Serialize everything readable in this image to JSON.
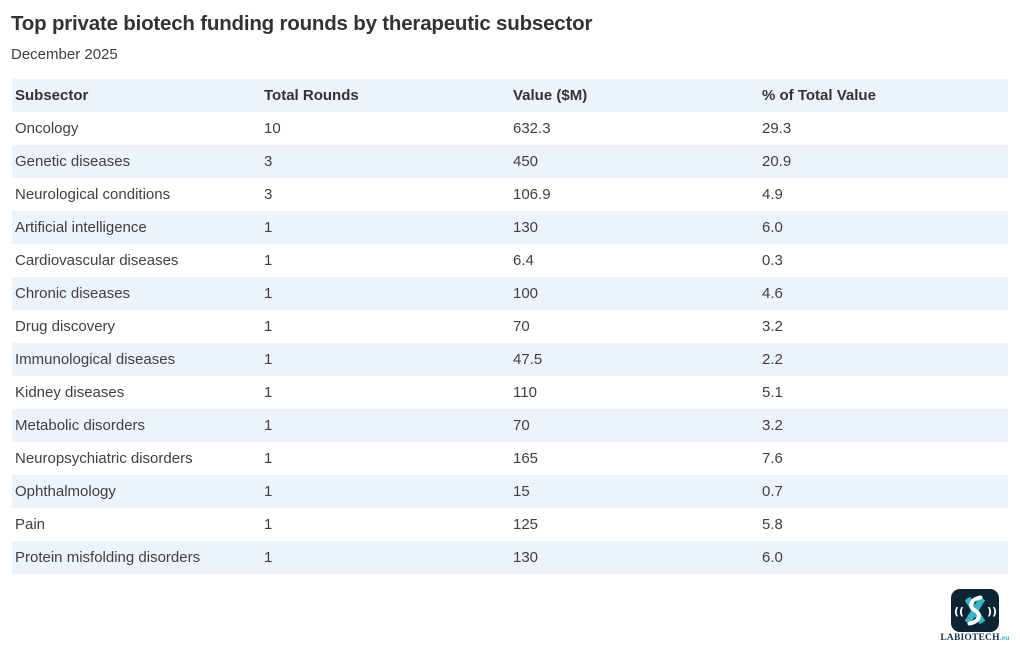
{
  "header": {
    "title": "Top private biotech funding rounds by therapeutic subsector",
    "subtitle": "December 2025"
  },
  "table": {
    "columns": [
      "Subsector",
      "Total Rounds",
      "Value ($M)",
      "% of Total Value"
    ],
    "rows": [
      [
        "Oncology",
        "10",
        "632.3",
        "29.3"
      ],
      [
        "Genetic diseases",
        "3",
        "450",
        "20.9"
      ],
      [
        "Neurological conditions",
        "3",
        "106.9",
        "4.9"
      ],
      [
        "Artificial intelligence",
        "1",
        "130",
        "6.0"
      ],
      [
        "Cardiovascular diseases",
        "1",
        "6.4",
        "0.3"
      ],
      [
        "Chronic diseases",
        "1",
        "100",
        "4.6"
      ],
      [
        "Drug discovery",
        "1",
        "70",
        "3.2"
      ],
      [
        "Immunological diseases",
        "1",
        "47.5",
        "2.2"
      ],
      [
        "Kidney diseases",
        "1",
        "110",
        "5.1"
      ],
      [
        "Metabolic disorders",
        "1",
        "70",
        "3.2"
      ],
      [
        "Neuropsychiatric disorders",
        "1",
        "165",
        "7.6"
      ],
      [
        "Ophthalmology",
        "1",
        "15",
        "0.7"
      ],
      [
        "Pain",
        "1",
        "125",
        "5.8"
      ],
      [
        "Protein misfolding disorders",
        "1",
        "130",
        "6.0"
      ]
    ]
  },
  "chart_data": {
    "type": "table",
    "title": "Top private biotech funding rounds by therapeutic subsector",
    "subtitle": "December 2025",
    "columns": [
      "Subsector",
      "Total Rounds",
      "Value ($M)",
      "% of Total Value"
    ],
    "rows": [
      {
        "subsector": "Oncology",
        "total_rounds": 10,
        "value_musd": 632.3,
        "pct_of_total_value": 29.3
      },
      {
        "subsector": "Genetic diseases",
        "total_rounds": 3,
        "value_musd": 450,
        "pct_of_total_value": 20.9
      },
      {
        "subsector": "Neurological conditions",
        "total_rounds": 3,
        "value_musd": 106.9,
        "pct_of_total_value": 4.9
      },
      {
        "subsector": "Artificial intelligence",
        "total_rounds": 1,
        "value_musd": 130,
        "pct_of_total_value": 6.0
      },
      {
        "subsector": "Cardiovascular diseases",
        "total_rounds": 1,
        "value_musd": 6.4,
        "pct_of_total_value": 0.3
      },
      {
        "subsector": "Chronic diseases",
        "total_rounds": 1,
        "value_musd": 100,
        "pct_of_total_value": 4.6
      },
      {
        "subsector": "Drug discovery",
        "total_rounds": 1,
        "value_musd": 70,
        "pct_of_total_value": 3.2
      },
      {
        "subsector": "Immunological diseases",
        "total_rounds": 1,
        "value_musd": 47.5,
        "pct_of_total_value": 2.2
      },
      {
        "subsector": "Kidney diseases",
        "total_rounds": 1,
        "value_musd": 110,
        "pct_of_total_value": 5.1
      },
      {
        "subsector": "Metabolic disorders",
        "total_rounds": 1,
        "value_musd": 70,
        "pct_of_total_value": 3.2
      },
      {
        "subsector": "Neuropsychiatric disorders",
        "total_rounds": 1,
        "value_musd": 165,
        "pct_of_total_value": 7.6
      },
      {
        "subsector": "Ophthalmology",
        "total_rounds": 1,
        "value_musd": 15,
        "pct_of_total_value": 0.7
      },
      {
        "subsector": "Pain",
        "total_rounds": 1,
        "value_musd": 125,
        "pct_of_total_value": 5.8
      },
      {
        "subsector": "Protein misfolding disorders",
        "total_rounds": 1,
        "value_musd": 130,
        "pct_of_total_value": 6.0
      }
    ],
    "layout_hints": {
      "striped_rows": true,
      "stripe_color": "#edf3fa",
      "header_background": "#edf3fa",
      "grid": false
    }
  },
  "logo": {
    "wordmark": "LABIOTECH",
    "tld": ".eu",
    "colors": {
      "navy": "#0c2433",
      "teal": "#35b6c4",
      "wordmark_navy": "#16364d",
      "white": "#ffffff"
    }
  },
  "colors": {
    "background": "#ffffff",
    "title_text": "#333333",
    "body_text": "#404040",
    "stripe": "#edf3fa"
  }
}
